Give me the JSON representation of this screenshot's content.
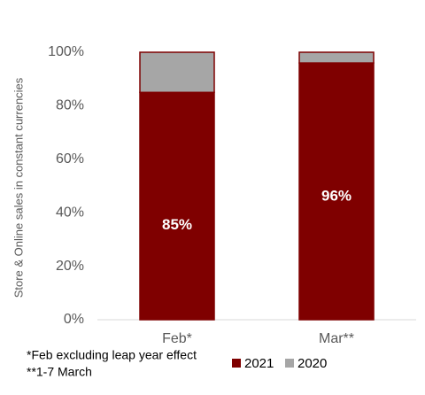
{
  "chart_data": {
    "type": "stacked_bar",
    "y_axis_label": "Store & Online sales in constant currencies",
    "categories": [
      "Feb*",
      "Mar**"
    ],
    "series": [
      {
        "name": "2021",
        "color": "#7f0000",
        "values": [
          85,
          96
        ],
        "value_labels": [
          "85%",
          "96%"
        ]
      },
      {
        "name": "2020",
        "color": "#a6a6a6",
        "values": [
          15,
          4
        ]
      }
    ],
    "ylim": [
      0,
      100
    ],
    "yticks": [
      {
        "value": 0,
        "label": "0%"
      },
      {
        "value": 20,
        "label": "20%"
      },
      {
        "value": 40,
        "label": "40%"
      },
      {
        "value": 60,
        "label": "60%"
      },
      {
        "value": 80,
        "label": "80%"
      },
      {
        "value": 100,
        "label": "100%"
      }
    ],
    "grid": false,
    "legend": "bottom-right",
    "notes": [
      "*Feb excluding leap year effect",
      "**1-7 March"
    ]
  }
}
